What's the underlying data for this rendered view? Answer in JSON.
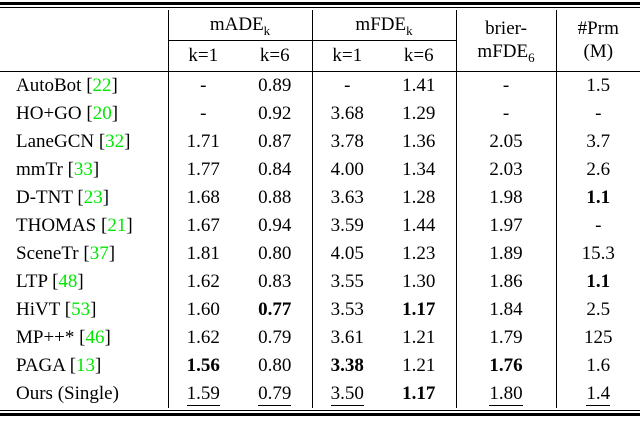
{
  "colors": {
    "citation_green": "#00e800",
    "text": "#000000",
    "background": "#ffffff"
  },
  "header": {
    "made_label": "mADE",
    "made_sub": "k",
    "mfde_label": "mFDE",
    "mfde_sub": "k",
    "brier_line1": "brier-",
    "brier_line2_label": "mFDE",
    "brier_line2_sub": "6",
    "prm_line1": "#Prm",
    "prm_line2": "(M)",
    "k1": "k=1",
    "k6": "k=6",
    "cite_prefix": " [",
    "cite_suffix": "]"
  },
  "chart_data": {
    "type": "table",
    "column_groups": [
      "",
      "mADE_k",
      "mADE_k",
      "mFDE_k",
      "mFDE_k",
      "brier-mFDE_6",
      "#Prm (M)"
    ],
    "columns": [
      "method",
      "mADE k=1",
      "mADE k=6",
      "mFDE k=1",
      "mFDE k=6",
      "brier-mFDE6",
      "#Prm (M)"
    ]
  },
  "rows": [
    {
      "method": "AutoBot",
      "cite": "22",
      "cells": [
        {
          "v": "-",
          "s": ""
        },
        {
          "v": "0.89",
          "s": ""
        },
        {
          "v": "-",
          "s": ""
        },
        {
          "v": "1.41",
          "s": ""
        },
        {
          "v": "-",
          "s": ""
        },
        {
          "v": "1.5",
          "s": ""
        }
      ]
    },
    {
      "method": "HO+GO",
      "cite": "20",
      "cells": [
        {
          "v": "-",
          "s": ""
        },
        {
          "v": "0.92",
          "s": ""
        },
        {
          "v": "3.68",
          "s": ""
        },
        {
          "v": "1.29",
          "s": ""
        },
        {
          "v": "-",
          "s": ""
        },
        {
          "v": "-",
          "s": ""
        }
      ]
    },
    {
      "method": "LaneGCN",
      "cite": "32",
      "cells": [
        {
          "v": "1.71",
          "s": ""
        },
        {
          "v": "0.87",
          "s": ""
        },
        {
          "v": "3.78",
          "s": ""
        },
        {
          "v": "1.36",
          "s": ""
        },
        {
          "v": "2.05",
          "s": ""
        },
        {
          "v": "3.7",
          "s": ""
        }
      ]
    },
    {
      "method": "mmTr",
      "cite": "33",
      "cells": [
        {
          "v": "1.77",
          "s": ""
        },
        {
          "v": "0.84",
          "s": ""
        },
        {
          "v": "4.00",
          "s": ""
        },
        {
          "v": "1.34",
          "s": ""
        },
        {
          "v": "2.03",
          "s": ""
        },
        {
          "v": "2.6",
          "s": ""
        }
      ]
    },
    {
      "method": "D-TNT",
      "cite": "23",
      "cells": [
        {
          "v": "1.68",
          "s": ""
        },
        {
          "v": "0.88",
          "s": ""
        },
        {
          "v": "3.63",
          "s": ""
        },
        {
          "v": "1.28",
          "s": ""
        },
        {
          "v": "1.98",
          "s": ""
        },
        {
          "v": "1.1",
          "s": "b"
        }
      ]
    },
    {
      "method": "THOMAS",
      "cite": "21",
      "cells": [
        {
          "v": "1.67",
          "s": ""
        },
        {
          "v": "0.94",
          "s": ""
        },
        {
          "v": "3.59",
          "s": ""
        },
        {
          "v": "1.44",
          "s": ""
        },
        {
          "v": "1.97",
          "s": ""
        },
        {
          "v": "-",
          "s": ""
        }
      ]
    },
    {
      "method": "SceneTr",
      "cite": "37",
      "cells": [
        {
          "v": "1.81",
          "s": ""
        },
        {
          "v": "0.80",
          "s": ""
        },
        {
          "v": "4.05",
          "s": ""
        },
        {
          "v": "1.23",
          "s": ""
        },
        {
          "v": "1.89",
          "s": ""
        },
        {
          "v": "15.3",
          "s": ""
        }
      ]
    },
    {
      "method": "LTP",
      "cite": "48",
      "cells": [
        {
          "v": "1.62",
          "s": ""
        },
        {
          "v": "0.83",
          "s": ""
        },
        {
          "v": "3.55",
          "s": ""
        },
        {
          "v": "1.30",
          "s": ""
        },
        {
          "v": "1.86",
          "s": ""
        },
        {
          "v": "1.1",
          "s": "b"
        }
      ]
    },
    {
      "method": "HiVT",
      "cite": "53",
      "cells": [
        {
          "v": "1.60",
          "s": ""
        },
        {
          "v": "0.77",
          "s": "b"
        },
        {
          "v": "3.53",
          "s": ""
        },
        {
          "v": "1.17",
          "s": "b"
        },
        {
          "v": "1.84",
          "s": ""
        },
        {
          "v": "2.5",
          "s": ""
        }
      ]
    },
    {
      "method": "MP++*",
      "cite": "46",
      "cells": [
        {
          "v": "1.62",
          "s": ""
        },
        {
          "v": "0.79",
          "s": ""
        },
        {
          "v": "3.61",
          "s": ""
        },
        {
          "v": "1.21",
          "s": ""
        },
        {
          "v": "1.79",
          "s": ""
        },
        {
          "v": "125",
          "s": ""
        }
      ]
    },
    {
      "method": "PAGA",
      "cite": "13",
      "cells": [
        {
          "v": "1.56",
          "s": "b"
        },
        {
          "v": "0.80",
          "s": ""
        },
        {
          "v": "3.38",
          "s": "b"
        },
        {
          "v": "1.21",
          "s": ""
        },
        {
          "v": "1.76",
          "s": "b"
        },
        {
          "v": "1.6",
          "s": ""
        }
      ]
    },
    {
      "method": "Ours (Single)",
      "cite": null,
      "cells": [
        {
          "v": "1.59",
          "s": "u"
        },
        {
          "v": "0.79",
          "s": "u"
        },
        {
          "v": "3.50",
          "s": "u"
        },
        {
          "v": "1.17",
          "s": "b"
        },
        {
          "v": "1.80",
          "s": "u"
        },
        {
          "v": "1.4",
          "s": "u"
        }
      ]
    }
  ]
}
